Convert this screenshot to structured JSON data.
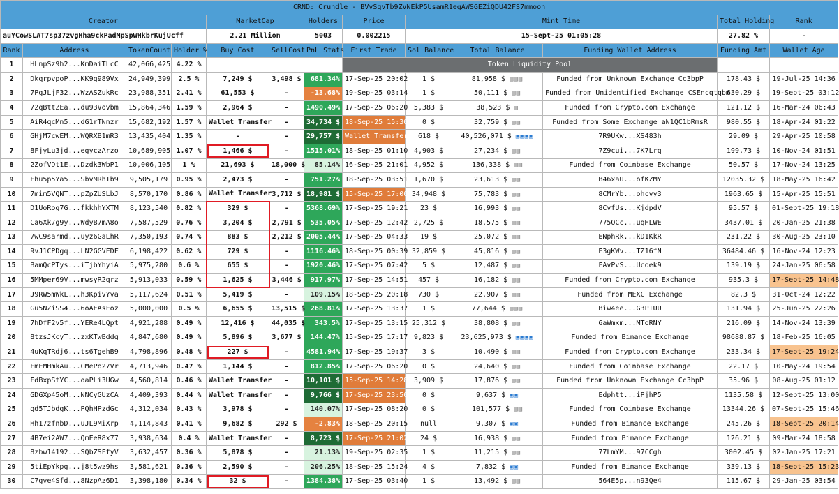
{
  "title": "CRND: Crundle - BVvSqvTb9ZVNEkP5UsamR1egAWSGEZiQDU42FS7mmoon",
  "summary_headers": [
    "Creator",
    "MarketCap",
    "Holders",
    "Price",
    "Mint Time",
    "Total Holding",
    "Rank"
  ],
  "summary_values": [
    "auYCowSLAT7sp37zvgHha9ckPadMpSpWHkbrKujUcff",
    "2.21 Million",
    "5003",
    "0.002215",
    "15-Sept-25 01:05:28",
    "27.82 %",
    "-"
  ],
  "columns": [
    "Rank",
    "Address",
    "TokenCount",
    "Holder %",
    "Buy Cost",
    "SellCost",
    "PnL Stats",
    "First Trade",
    "Sol Balance",
    "Total Balance",
    "Funding Wallet Address",
    "Funding Amt",
    "Wallet Age"
  ],
  "pool_label": "Token Liquidity Pool",
  "colors": {
    "header": "#4e9fd6",
    "pnl_green": "#2ea75a",
    "pnl_dark": "#1e6b35",
    "pnl_light": "#d7f3df",
    "orange": "#e58240",
    "age_orange": "#f8c38f",
    "highlight_box": "#e01b24"
  },
  "rows": [
    {
      "rank": "1",
      "address": "HLnpSz9h2...KmDaiTLcC",
      "tokens": "42,066,425",
      "holder": "4.22 %",
      "pool": true
    },
    {
      "rank": "2",
      "address": "DkqrpvpoP...KK9g989Vx",
      "tokens": "24,949,399",
      "holder": "2.5 %",
      "buy": "7,249 $",
      "sell": "3,498 $",
      "pnl": "681.34%",
      "pnlc": "mg",
      "trade": "17-Sep-25 20:02",
      "sol": "1 $",
      "total": "81,958 $",
      "icons": "grey3",
      "funding": "Funded from Unknown Exchange Cc3bpP",
      "famt": "178.43 $",
      "age": "19-Jul-25 14:36"
    },
    {
      "rank": "3",
      "address": "7PgJLjF32...WzASZukRc",
      "tokens": "23,988,351",
      "holder": "2.41 %",
      "buy": "61,553 $",
      "sell": "-",
      "pnl": "-13.68%",
      "pnlc": "org",
      "trade": "19-Sep-25 03:14",
      "sol": "1 $",
      "total": "50,111 $",
      "icons": "grey2",
      "funding": "Funded from Unidentified Exchange CSEncqtqbm",
      "famt": "630.29 $",
      "age": "19-Sept-25 03:12"
    },
    {
      "rank": "4",
      "address": "72qBttZEa...du93Vovbm",
      "tokens": "15,864,346",
      "holder": "1.59 %",
      "buy": "2,964 $",
      "sell": "-",
      "pnl": "1490.49%",
      "pnlc": "mg",
      "trade": "17-Sep-25 06:20",
      "sol": "5,383 $",
      "total": "38,523 $",
      "icons": "grey1",
      "funding": "Funded from Crypto.com Exchange",
      "famt": "121.12 $",
      "age": "16-Mar-24 06:43"
    },
    {
      "rank": "5",
      "address": "AiR4qcMn5...dG1rTNnzr",
      "tokens": "15,682,192",
      "holder": "1.57 %",
      "buy": "Wallet Transfer",
      "sell": "-",
      "pnl": "34,734 $",
      "pnlc": "dg",
      "trade": "18-Sep-25 15:30",
      "tradeOrg": true,
      "sol": "0 $",
      "total": "32,759 $",
      "icons": "grey2",
      "funding": "Funded from Some Exchange aN1QC1bRmsR",
      "famt": "980.55 $",
      "age": "18-Apr-24 01:22"
    },
    {
      "rank": "6",
      "address": "GHjM7cwEM...WQRXB1mR3",
      "tokens": "13,435,404",
      "holder": "1.35 %",
      "buy": "-",
      "sell": "-",
      "pnl": "29,757 $",
      "pnlc": "dg",
      "trade": "Wallet Transfer",
      "tradeOrg": true,
      "sol": "618 $",
      "total": "40,526,071 $",
      "icons": "blue4",
      "funding": "7R9UKw...XS483h",
      "famt": "29.09 $",
      "age": "29-Apr-25 10:58"
    },
    {
      "rank": "7",
      "address": "8FjyLu3jd...egyczArzo",
      "tokens": "10,689,905",
      "holder": "1.07 %",
      "buy": "1,466 $",
      "boxed": true,
      "sell": "-",
      "pnl": "1515.01%",
      "pnlc": "mg",
      "trade": "18-Sep-25 01:10",
      "sol": "4,903 $",
      "total": "27,234 $",
      "icons": "grey2",
      "funding": "7Z9cui...7K7Lrq",
      "famt": "199.73 $",
      "age": "10-Nov-24 01:51"
    },
    {
      "rank": "8",
      "address": "2ZofVDt1E...Dzdk3WbP1",
      "tokens": "10,006,105",
      "holder": "1 %",
      "buy": "21,693 $",
      "sell": "18,000 $",
      "pnl": "85.14%",
      "pnlc": "ltg",
      "trade": "16-Sep-25 21:01",
      "sol": "4,952 $",
      "total": "136,338 $",
      "icons": "grey2",
      "funding": "Funded from Coinbase Exchange",
      "famt": "50.57 $",
      "age": "17-Nov-24 13:25"
    },
    {
      "rank": "9",
      "address": "Fhu5p5Ya5...SbvMRhTb9",
      "tokens": "9,505,179",
      "holder": "0.95 %",
      "buy": "2,473 $",
      "sell": "-",
      "pnl": "751.27%",
      "pnlc": "mg",
      "trade": "18-Sep-25 03:51",
      "sol": "1,670 $",
      "total": "23,613 $",
      "icons": "grey2",
      "funding": "B46xaU...ofKZMY",
      "famt": "12035.32 $",
      "age": "18-May-25 16:42"
    },
    {
      "rank": "10",
      "address": "7mim5VQNT...pZpZUSLbJ",
      "tokens": "8,570,170",
      "holder": "0.86 %",
      "buy": "Wallet Transfer",
      "sell": "3,712 $",
      "pnl": "18,981 $",
      "pnlc": "dg",
      "trade": "15-Sep-25 17:00",
      "tradeOrg": true,
      "sol": "34,948 $",
      "total": "75,783 $",
      "icons": "grey2",
      "funding": "8CMrYb...ohcvy3",
      "famt": "1963.65 $",
      "age": "15-Apr-25 15:51"
    },
    {
      "rank": "11",
      "address": "D1UoRog7G...fkkhhYXTM",
      "tokens": "8,123,540",
      "holder": "0.82 %",
      "buy": "329 $",
      "boxTop": true,
      "sell": "-",
      "pnl": "5368.69%",
      "pnlc": "mg",
      "trade": "17-Sep-25 19:21",
      "sol": "23 $",
      "total": "16,993 $",
      "icons": "grey2",
      "funding": "8CvfUs...KjdpdV",
      "famt": "95.57 $",
      "age": "01-Sept-25 19:18"
    },
    {
      "rank": "12",
      "address": "Ca6Xk7g9y...WdyB7mA8o",
      "tokens": "7,587,529",
      "holder": "0.76 %",
      "buy": "3,204 $",
      "boxMid": true,
      "sell": "2,791 $",
      "pnl": "535.05%",
      "pnlc": "mg",
      "trade": "17-Sep-25 12:42",
      "sol": "2,725 $",
      "total": "18,575 $",
      "icons": "grey2",
      "funding": "775QCc...uqHLWE",
      "famt": "3437.01 $",
      "age": "20-Jan-25 21:38"
    },
    {
      "rank": "13",
      "address": "7wC9sarmd...uyz6GaLhR",
      "tokens": "7,350,193",
      "holder": "0.74 %",
      "buy": "883 $",
      "boxMid": true,
      "sell": "2,212 $",
      "pnl": "2005.44%",
      "pnlc": "mg",
      "trade": "17-Sep-25 04:33",
      "sol": "19 $",
      "total": "25,072 $",
      "icons": "grey2",
      "funding": "ENphRk...kD1KkR",
      "famt": "231.22 $",
      "age": "30-Aug-25 23:10"
    },
    {
      "rank": "14",
      "address": "9vJ1CPDgq...LN2GGVFDF",
      "tokens": "6,198,422",
      "holder": "0.62 %",
      "buy": "729 $",
      "boxMid": true,
      "sell": "-",
      "pnl": "1116.46%",
      "pnlc": "mg",
      "trade": "18-Sep-25 00:39",
      "sol": "32,859 $",
      "total": "45,816 $",
      "icons": "grey2",
      "funding": "E3gKWv...TZ16fN",
      "famt": "36484.46 $",
      "age": "16-Nov-24 12:23"
    },
    {
      "rank": "15",
      "address": "BamQcPTys...iTjbYhyiA",
      "tokens": "5,975,280",
      "holder": "0.6 %",
      "buy": "655 $",
      "boxMid": true,
      "sell": "-",
      "pnl": "1920.46%",
      "pnlc": "mg",
      "trade": "17-Sep-25 07:42",
      "sol": "5 $",
      "total": "12,487 $",
      "icons": "grey2",
      "funding": "FAvPvS...Ucoek9",
      "famt": "139.19 $",
      "age": "24-Jan-25 06:58"
    },
    {
      "rank": "16",
      "address": "5MMper69V...mwsyR2qrz",
      "tokens": "5,913,033",
      "holder": "0.59 %",
      "buy": "1,625 $",
      "boxBot": true,
      "sell": "3,446 $",
      "pnl": "917.97%",
      "pnlc": "mg",
      "trade": "17-Sep-25 14:51",
      "sol": "457 $",
      "total": "16,182 $",
      "icons": "grey2",
      "funding": "Funded from Crypto.com Exchange",
      "famt": "935.3 $",
      "age": "17-Sept-25 14:48",
      "ageOrg": true
    },
    {
      "rank": "17",
      "address": "J9RW5mWkL...h3KpivYva",
      "tokens": "5,117,624",
      "holder": "0.51 %",
      "buy": "5,419 $",
      "sell": "-",
      "pnl": "109.15%",
      "pnlc": "ltg",
      "trade": "18-Sep-25 20:18",
      "sol": "730 $",
      "total": "22,907 $",
      "icons": "grey2",
      "funding": "Funded from MEXC Exchange",
      "famt": "82.3 $",
      "age": "31-Oct-24 12:22"
    },
    {
      "rank": "18",
      "address": "Gu5NZiSS4...6oAEAsFoz",
      "tokens": "5,000,000",
      "holder": "0.5 %",
      "buy": "6,655 $",
      "sell": "13,515 $",
      "pnl": "268.81%",
      "pnlc": "mg",
      "trade": "17-Sep-25 13:37",
      "sol": "1 $",
      "total": "77,644 $",
      "icons": "grey3",
      "funding": "Biw4ee...G3PTUU",
      "famt": "131.94 $",
      "age": "25-Jun-25 22:26"
    },
    {
      "rank": "19",
      "address": "7hDfF2v5f...YERe4LQpt",
      "tokens": "4,921,288",
      "holder": "0.49 %",
      "buy": "12,416 $",
      "sell": "44,035 $",
      "pnl": "343.5%",
      "pnlc": "mg",
      "trade": "17-Sep-25 13:15",
      "sol": "25,312 $",
      "total": "38,808 $",
      "icons": "grey2",
      "funding": "6aWmxm...MToRNY",
      "famt": "216.09 $",
      "age": "14-Nov-24 13:39"
    },
    {
      "rank": "20",
      "address": "8tzsJKcyT...zxKTwBddg",
      "tokens": "4,847,680",
      "holder": "0.49 %",
      "buy": "5,896 $",
      "sell": "3,677 $",
      "pnl": "144.47%",
      "pnlc": "mg",
      "trade": "15-Sep-25 17:17",
      "sol": "9,823 $",
      "total": "23,625,973 $",
      "icons": "blue4",
      "funding": "Funded from Binance Exchange",
      "famt": "98688.87 $",
      "age": "18-Feb-25 16:05"
    },
    {
      "rank": "21",
      "address": "4uKqTRdj6...ts6TgehB9",
      "tokens": "4,798,896",
      "holder": "0.48 %",
      "buy": "227 $",
      "boxed": true,
      "sell": "-",
      "pnl": "4581.94%",
      "pnlc": "mg",
      "trade": "17-Sep-25 19:37",
      "sol": "3 $",
      "total": "10,490 $",
      "icons": "grey2",
      "funding": "Funded from Crypto.com Exchange",
      "famt": "233.34 $",
      "age": "17-Sept-25 19:24",
      "ageOrg": true
    },
    {
      "rank": "22",
      "address": "FmEMHmkAu...CMePo27Vr",
      "tokens": "4,713,946",
      "holder": "0.47 %",
      "buy": "1,144 $",
      "sell": "-",
      "pnl": "812.85%",
      "pnlc": "mg",
      "trade": "17-Sep-25 06:20",
      "sol": "0 $",
      "total": "24,640 $",
      "icons": "grey2",
      "funding": "Funded from Coinbase Exchange",
      "famt": "22.17 $",
      "age": "10-May-24 19:54"
    },
    {
      "rank": "23",
      "address": "FdBxpStYC...oaPLi3UGw",
      "tokens": "4,560,814",
      "holder": "0.46 %",
      "buy": "Wallet Transfer",
      "sell": "-",
      "pnl": "10,101 $",
      "pnlc": "dg",
      "trade": "15-Sep-25 14:28",
      "tradeOrg": true,
      "sol": "3,909 $",
      "total": "17,876 $",
      "icons": "grey2",
      "funding": "Funded from Unknown Exchange Cc3bpP",
      "famt": "35.96 $",
      "age": "08-Aug-25 01:12"
    },
    {
      "rank": "24",
      "address": "GDGXp45oM...NNCyGUzCA",
      "tokens": "4,409,393",
      "holder": "0.44 %",
      "buy": "Wallet Transfer",
      "sell": "-",
      "pnl": "9,766 $",
      "pnlc": "dg",
      "trade": "17-Sep-25 23:50",
      "tradeOrg": true,
      "sol": "0 $",
      "total": "9,637 $",
      "icons": "blue2",
      "funding": "Edphtt...iPjhP5",
      "famt": "1135.58 $",
      "age": "12-Sept-25 13:00"
    },
    {
      "rank": "25",
      "address": "gd5TJbdgK...PQhHPzdGc",
      "tokens": "4,312,034",
      "holder": "0.43 %",
      "buy": "3,978 $",
      "sell": "-",
      "pnl": "140.07%",
      "pnlc": "ltg",
      "trade": "17-Sep-25 08:20",
      "sol": "0 $",
      "total": "101,577 $",
      "icons": "grey2",
      "funding": "Funded from Coinbase Exchange",
      "famt": "13344.26 $",
      "age": "07-Sept-25 15:46"
    },
    {
      "rank": "26",
      "address": "Hh17zfnbD...uJL9MiXrp",
      "tokens": "4,114,843",
      "holder": "0.41 %",
      "buy": "9,682 $",
      "sell": "292 $",
      "pnl": "-2.83%",
      "pnlc": "org",
      "trade": "18-Sep-25 20:15",
      "sol": "null",
      "total": "9,307 $",
      "icons": "blue2",
      "funding": "Funded from Binance Exchange",
      "famt": "245.26 $",
      "age": "18-Sept-25 20:14",
      "ageOrg": true
    },
    {
      "rank": "27",
      "address": "4B7ei2AW7...QmEeR8x77",
      "tokens": "3,938,634",
      "holder": "0.4 %",
      "buy": "Wallet Transfer",
      "sell": "-",
      "pnl": "8,723 $",
      "pnlc": "dg",
      "trade": "17-Sep-25 21:02",
      "tradeOrg": true,
      "sol": "24 $",
      "total": "16,938 $",
      "icons": "grey2",
      "funding": "Funded from Binance Exchange",
      "famt": "126.21 $",
      "age": "09-Mar-24 18:58"
    },
    {
      "rank": "28",
      "address": "8zbw14192...SQbZSFfyV",
      "tokens": "3,632,457",
      "holder": "0.36 %",
      "buy": "5,878 $",
      "sell": "-",
      "pnl": "21.13%",
      "pnlc": "ltg",
      "trade": "19-Sep-25 02:35",
      "sol": "1 $",
      "total": "11,215 $",
      "icons": "grey2",
      "funding": "77LmYM...97CCgh",
      "famt": "3002.45 $",
      "age": "02-Jan-25 17:21"
    },
    {
      "rank": "29",
      "address": "5tiEpYkpg...j8t5wz9hs",
      "tokens": "3,581,621",
      "holder": "0.36 %",
      "buy": "2,590 $",
      "sell": "-",
      "pnl": "206.25%",
      "pnlc": "ltg",
      "trade": "18-Sep-25 15:24",
      "sol": "4 $",
      "total": "7,832 $",
      "icons": "blue2",
      "funding": "Funded from Binance Exchange",
      "famt": "339.13 $",
      "age": "18-Sept-25 15:23",
      "ageOrg": true
    },
    {
      "rank": "30",
      "address": "C7gve4Sfd...8NzpAz6D1",
      "tokens": "3,398,180",
      "holder": "0.34 %",
      "buy": "32 $",
      "boxed": true,
      "sell": "-",
      "pnl": "1384.38%",
      "pnlc": "mg",
      "trade": "17-Sep-25 03:40",
      "sol": "1 $",
      "total": "13,492 $",
      "icons": "grey2",
      "funding": "564E5p...n93Qe4",
      "famt": "115.67 $",
      "age": "29-Jan-25 03:54"
    }
  ]
}
